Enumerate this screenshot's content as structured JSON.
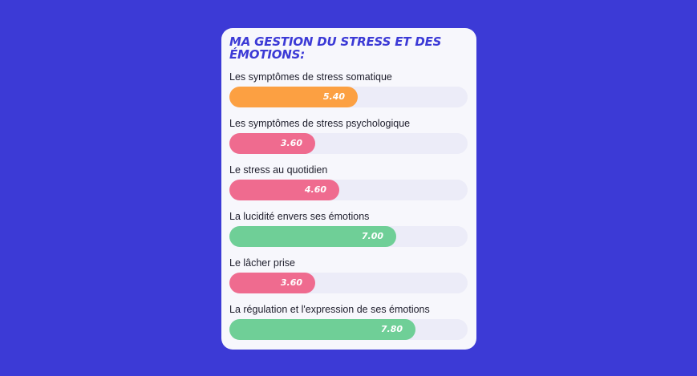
{
  "card": {
    "title": "MA GESTION DU STRESS ET DES ÉMOTIONS:"
  },
  "colors": {
    "background": "#3c3ad6",
    "card": "#f7f7fc",
    "track": "#ececf8",
    "orange": "#fca042",
    "pink": "#ef6b8f",
    "green": "#6fcf97"
  },
  "chart_data": {
    "type": "bar",
    "orientation": "horizontal",
    "title": "MA GESTION DU STRESS ET DES ÉMOTIONS:",
    "xlim": [
      0,
      10
    ],
    "categories": [
      "Les symptômes de stress somatique",
      "Les symptômes de stress psychologique",
      "Le stress au quotidien",
      "La lucidité envers ses émotions",
      "Le lâcher prise",
      "La régulation et l'expression de ses émotions"
    ],
    "values": [
      5.4,
      3.6,
      4.6,
      7.0,
      3.6,
      7.8
    ],
    "value_labels": [
      "5.40",
      "3.60",
      "4.60",
      "7.00",
      "3.60",
      "7.80"
    ],
    "bar_colors": [
      "#fca042",
      "#ef6b8f",
      "#ef6b8f",
      "#6fcf97",
      "#ef6b8f",
      "#6fcf97"
    ]
  }
}
